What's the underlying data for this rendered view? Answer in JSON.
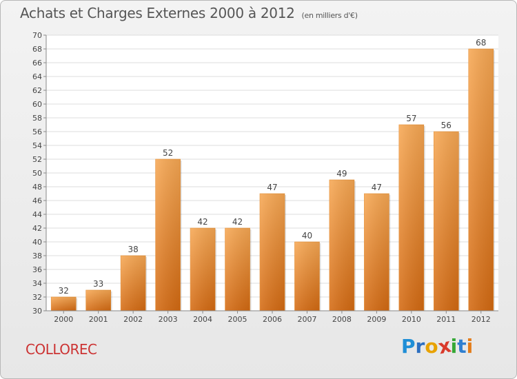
{
  "header": {
    "title": "Achats et Charges Externes 2000 à 2012",
    "unit": "(en milliers d'€)"
  },
  "footer": {
    "commune": "COLLOREC",
    "logo_letters": [
      "P",
      "r",
      "o",
      "x",
      "i",
      "t",
      "i"
    ],
    "logo_colors": [
      "#1f8ed6",
      "#2d6fc0",
      "#e8a200",
      "#d93a2b",
      "#35a836",
      "#2f7fd0",
      "#e37d1a"
    ]
  },
  "chart_data": {
    "type": "bar",
    "title": "Achats et Charges Externes 2000 à 2012",
    "categories": [
      "2000",
      "2001",
      "2002",
      "2003",
      "2004",
      "2005",
      "2006",
      "2007",
      "2008",
      "2009",
      "2010",
      "2011",
      "2012"
    ],
    "values": [
      32,
      33,
      38,
      52,
      42,
      42,
      47,
      40,
      49,
      47,
      57,
      56,
      68
    ],
    "ylim": [
      30,
      70
    ],
    "yticks": [
      30,
      32,
      34,
      36,
      38,
      40,
      42,
      44,
      46,
      48,
      50,
      52,
      54,
      56,
      58,
      60,
      62,
      64,
      66,
      68,
      70
    ],
    "grid": true,
    "bar_color": "#f0922e"
  }
}
